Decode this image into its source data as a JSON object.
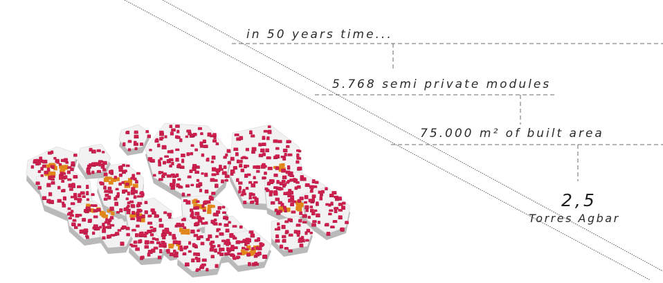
{
  "annotations": {
    "years": "in 50 years time...",
    "modules": "5.768 semi private modules",
    "built_area": "75.000 m² of built area",
    "ratio_value": "2,5",
    "ratio_label": "Torres Agbar"
  },
  "colors": {
    "module": "#cc1f4e",
    "module_dark": "#8f1535",
    "semi_private": "#e0861a",
    "block_top": "#f2f2f2",
    "block_side": "#b9b9b9",
    "leader_line": "#666666"
  }
}
